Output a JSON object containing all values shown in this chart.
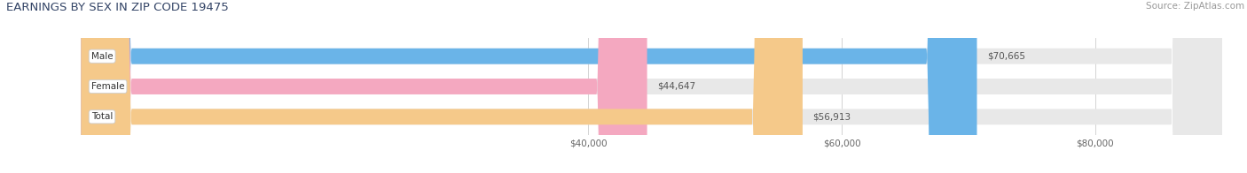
{
  "title": "EARNINGS BY SEX IN ZIP CODE 19475",
  "source": "Source: ZipAtlas.com",
  "categories": [
    "Male",
    "Female",
    "Total"
  ],
  "values": [
    70665,
    44647,
    56913
  ],
  "value_labels": [
    "$70,665",
    "$44,647",
    "$56,913"
  ],
  "bar_colors": [
    "#6ab4e8",
    "#f4a8c0",
    "#f5c98a"
  ],
  "bar_bg_color": "#e8e8e8",
  "x_min": 0,
  "x_max": 90000,
  "x_ticks": [
    40000,
    60000,
    80000
  ],
  "x_tick_labels": [
    "$40,000",
    "$60,000",
    "$80,000"
  ],
  "figsize": [
    14.06,
    1.96
  ],
  "dpi": 100,
  "bar_height": 0.52,
  "title_fontsize": 9.5,
  "source_fontsize": 7.5,
  "label_fontsize": 7.5,
  "value_fontsize": 7.5,
  "tick_fontsize": 7.5
}
